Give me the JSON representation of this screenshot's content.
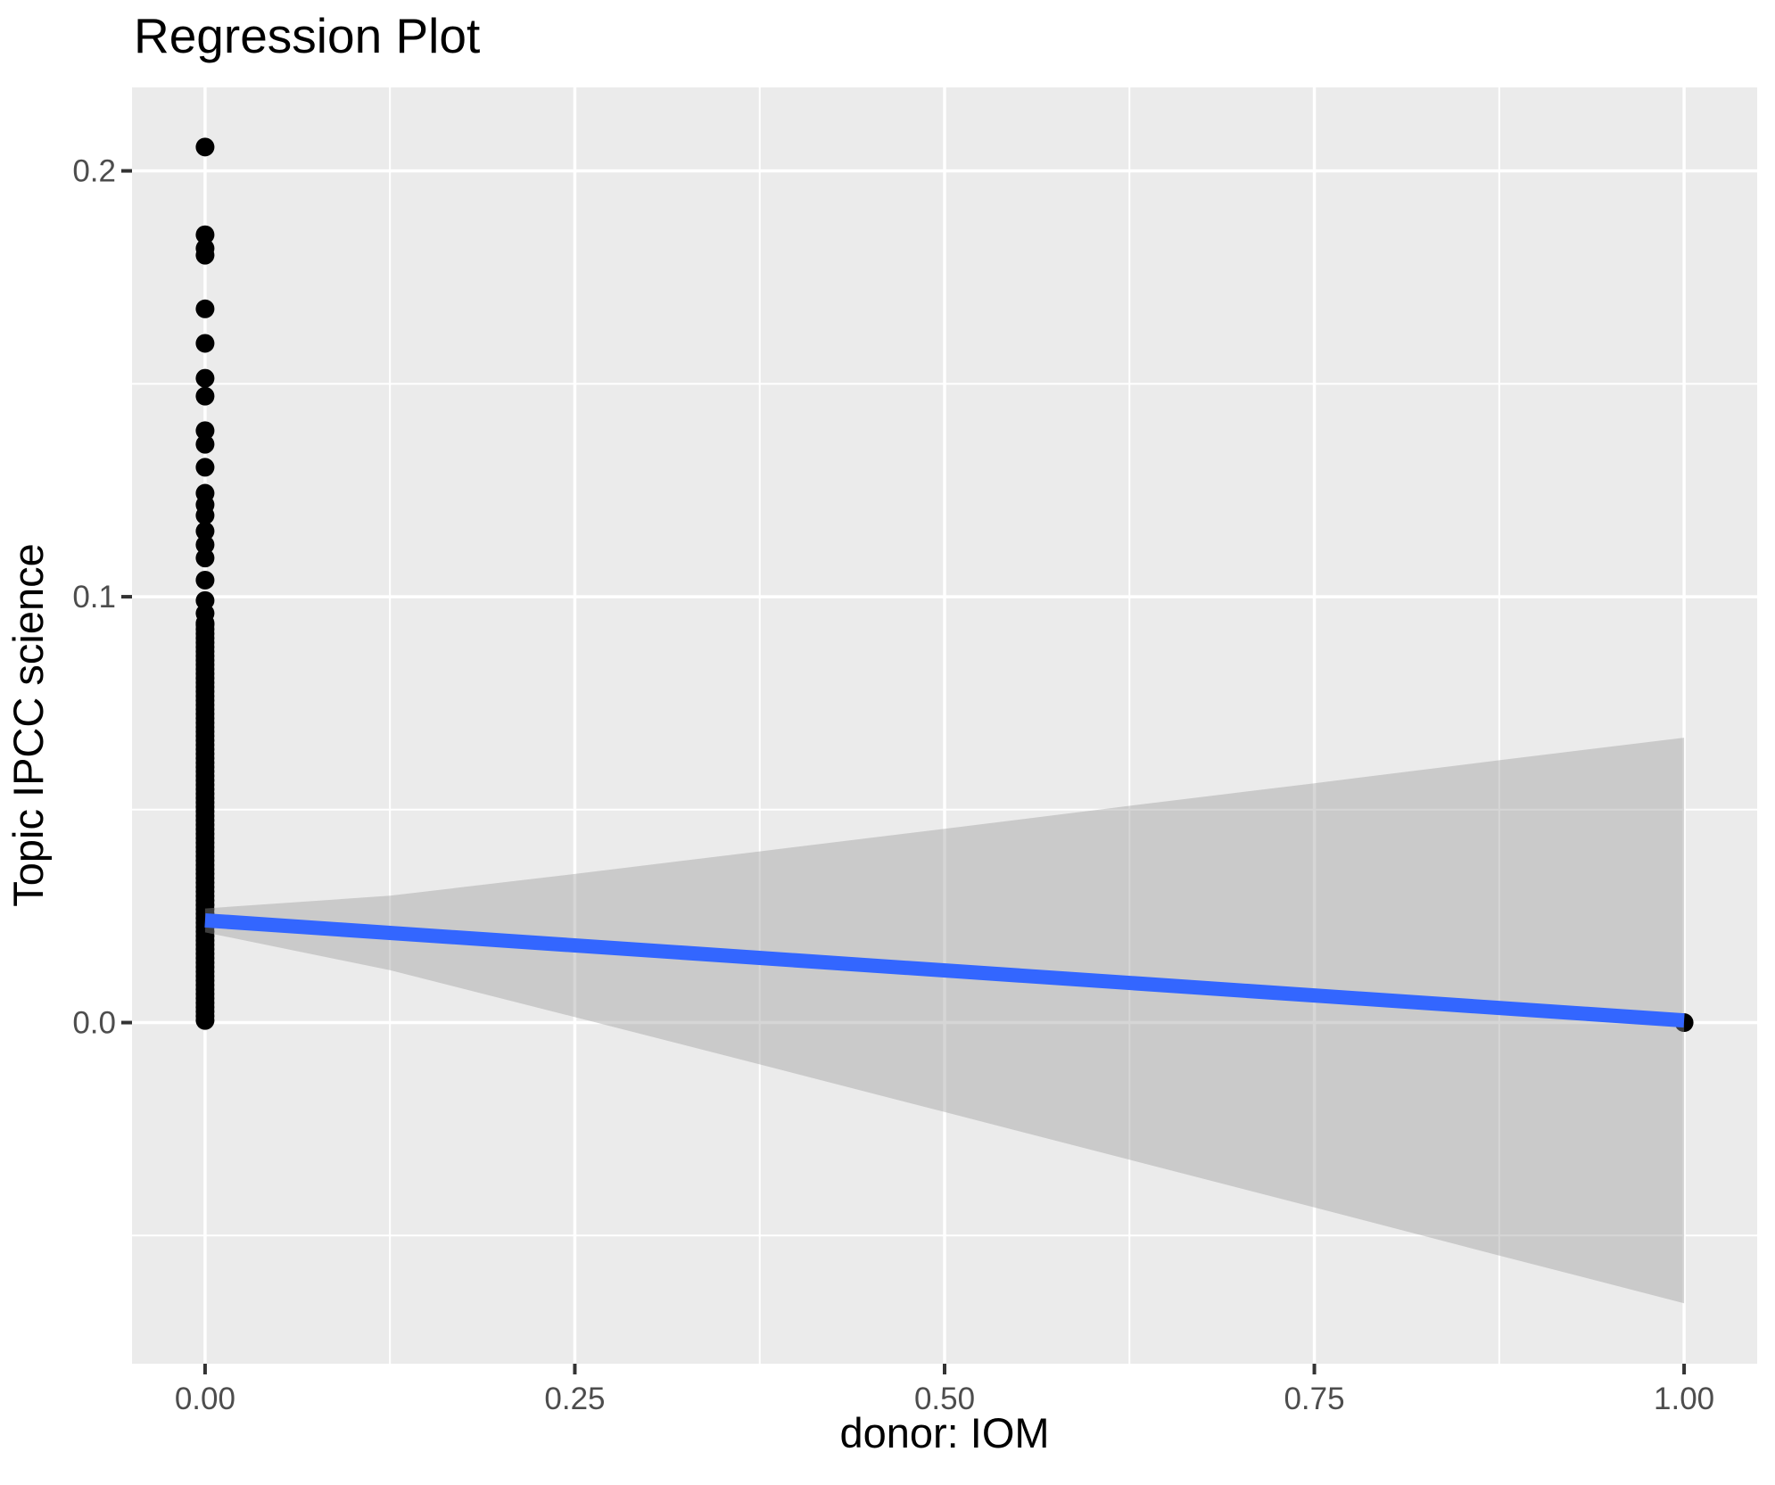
{
  "title": "Regression Plot",
  "chart_data": {
    "type": "scatter",
    "title": "Regression Plot",
    "xlabel": "donor: IOM",
    "ylabel": "Topic IPCC science",
    "xlim": [
      -0.0494,
      1.0494
    ],
    "ylim": [
      -0.0801,
      0.2196
    ],
    "x_major_ticks": [
      0,
      0.25,
      0.5,
      0.75,
      1.0
    ],
    "x_tick_labels": [
      "0.00",
      "0.25",
      "0.50",
      "0.75",
      "1.00"
    ],
    "x_minor_ticks": [
      0.125,
      0.375,
      0.625,
      0.875
    ],
    "y_major_ticks": [
      0.0,
      0.1,
      0.2
    ],
    "y_tick_labels": [
      "0.0",
      "0.1",
      "0.2"
    ],
    "y_minor_ticks": [
      -0.05,
      0.05,
      0.15
    ],
    "grid": "on",
    "legend": "none",
    "points": {
      "x0_discrete_y": [
        0.2056,
        0.185,
        0.1818,
        0.1802,
        0.1676,
        0.1595,
        0.1513,
        0.1471,
        0.139,
        0.1358,
        0.1304,
        0.1243,
        0.1216,
        0.1191,
        0.1154,
        0.1122,
        0.1091,
        0.1039,
        0.0991,
        0.0961,
        0.0938
      ],
      "x0_dense_y_range": {
        "min": 0.0005,
        "max": 0.0934,
        "count": 90
      },
      "x1_y": [
        0.0
      ]
    },
    "regression_line": {
      "x": [
        0,
        1
      ],
      "y": [
        0.024,
        0.0005
      ]
    },
    "confidence_band": {
      "x": [
        0,
        0.125,
        0.25,
        0.375,
        0.5,
        0.625,
        0.75,
        0.875,
        1.0
      ],
      "upper": [
        0.0268,
        0.0298,
        0.0349,
        0.0402,
        0.0455,
        0.0509,
        0.0562,
        0.0616,
        0.0669
      ],
      "lower": [
        0.0212,
        0.0123,
        0.0013,
        -0.0098,
        -0.021,
        -0.0322,
        -0.0434,
        -0.0547,
        -0.0659
      ]
    },
    "colors": {
      "line": "#3366FF",
      "point": "#000000",
      "band": "#999999",
      "band_opacity": 0.4,
      "panel_bg": "#EBEBEB",
      "grid": "#FFFFFF",
      "tick_text": "#4D4D4D",
      "tick_mark": "#333333",
      "text": "#000000"
    }
  }
}
